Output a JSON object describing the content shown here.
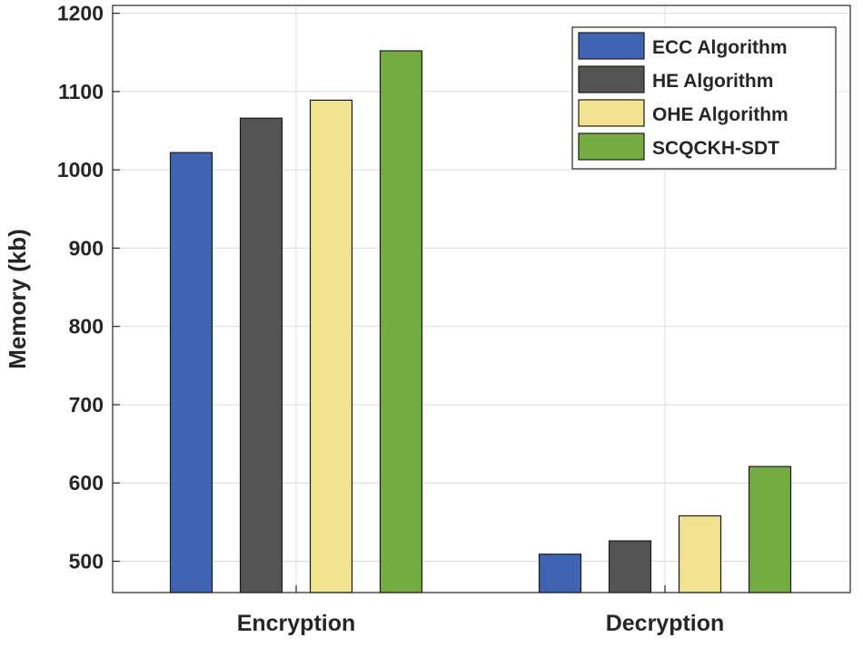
{
  "chart_data": {
    "type": "bar",
    "title": "",
    "xlabel": "",
    "ylabel": "Memory (kb)",
    "categories": [
      "Encryption",
      "Decryption"
    ],
    "series": [
      {
        "name": "ECC Algorithm",
        "color": "#4064b1",
        "values": [
          1022,
          509
        ]
      },
      {
        "name": "HE Algorithm",
        "color": "#545454",
        "values": [
          1066,
          526
        ]
      },
      {
        "name": "OHE Algorithm",
        "color": "#f1e28f",
        "values": [
          1089,
          558
        ]
      },
      {
        "name": "SCQCKH-SDT",
        "color": "#75ac41",
        "values": [
          1152,
          621
        ]
      }
    ],
    "ylim": [
      460,
      1210
    ],
    "yticks": [
      500,
      600,
      700,
      800,
      900,
      1000,
      1100,
      1200
    ],
    "grid": true,
    "legend": "top-right"
  }
}
